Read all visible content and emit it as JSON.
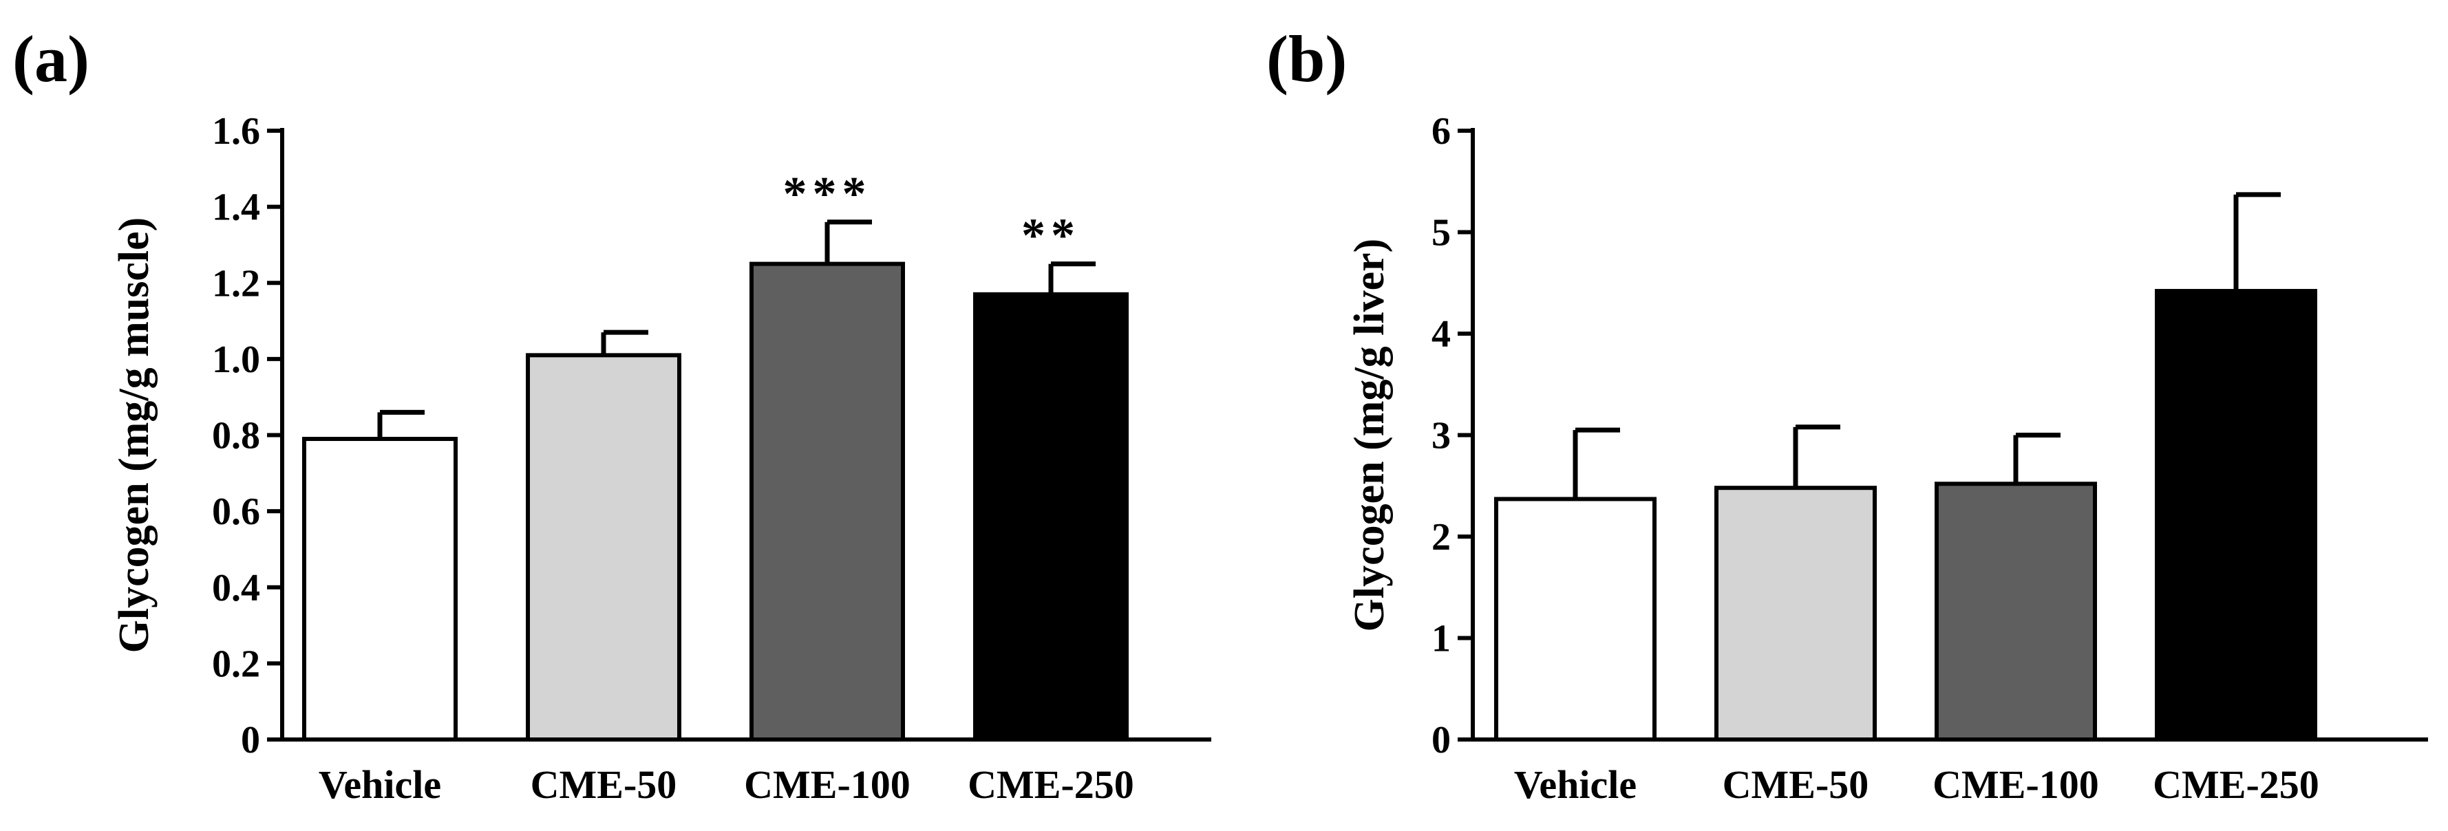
{
  "chart_data": [
    {
      "panel_label": "(a)",
      "type": "bar",
      "ylabel": "Glycogen (mg/g muscle)",
      "xlabel": "",
      "ylim": [
        0,
        1.6
      ],
      "yticks": [
        "0",
        "0.2",
        "0.4",
        "0.6",
        "0.8",
        "1.0",
        "1.2",
        "1.4",
        "1.6"
      ],
      "ytick_values": [
        0,
        0.2,
        0.4,
        0.6,
        0.8,
        1.0,
        1.2,
        1.4,
        1.6
      ],
      "categories": [
        "Vehicle",
        "CME-50",
        "CME-100",
        "CME-250"
      ],
      "values": [
        0.79,
        1.01,
        1.25,
        1.17
      ],
      "errors": [
        0.07,
        0.06,
        0.11,
        0.08
      ],
      "significance": [
        "",
        "",
        "***",
        "**"
      ],
      "colors": [
        "#ffffff",
        "#d4d4d4",
        "#5f5f5f",
        "#000000"
      ]
    },
    {
      "panel_label": "(b)",
      "type": "bar",
      "ylabel": "Glycogen (mg/g liver)",
      "xlabel": "",
      "ylim": [
        0,
        6
      ],
      "yticks": [
        "0",
        "1",
        "2",
        "3",
        "4",
        "5",
        "6"
      ],
      "ytick_values": [
        0,
        1,
        2,
        3,
        4,
        5,
        6
      ],
      "categories": [
        "Vehicle",
        "CME-50",
        "CME-100",
        "CME-250"
      ],
      "values": [
        2.37,
        2.48,
        2.52,
        4.42
      ],
      "errors": [
        0.68,
        0.6,
        0.48,
        0.95
      ],
      "significance": [
        "",
        "",
        "",
        ""
      ],
      "colors": [
        "#ffffff",
        "#d4d4d4",
        "#5f5f5f",
        "#000000"
      ]
    }
  ]
}
